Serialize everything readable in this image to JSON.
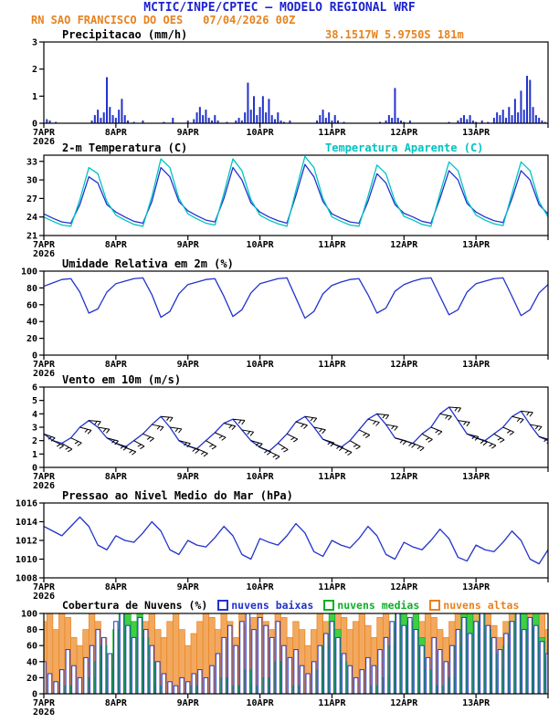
{
  "header": {
    "title": "MCTIC/INPE/CPTEC — MODELO REGIONAL WRF",
    "station": "RN SAO FRANCISCO DO OES",
    "run_datetime": "07/04/2026 00Z",
    "coords": "38.1517W 5.9750S 181m"
  },
  "colors": {
    "blue": "#2233cc",
    "cyan": "#00c3c3",
    "orange": "#e8821e",
    "orange_fill": "#f2a95f",
    "green": "#0faf27",
    "green_fill": "#41cf41",
    "title_blue": "#1c24cf",
    "black": "#000000"
  },
  "x_axis": {
    "day_labels": [
      "7APR",
      "8APR",
      "9APR",
      "10APR",
      "11APR",
      "12APR",
      "13APR"
    ],
    "year": "2026",
    "hours": 168
  },
  "chart_data": [
    {
      "id": "precip",
      "type": "bar",
      "title": "Precipitacao (mm/h)",
      "ylim": [
        0,
        3
      ],
      "yticks": [
        0,
        1,
        2,
        3
      ],
      "step_hours": 1,
      "values": [
        0,
        0.15,
        0.1,
        0,
        0.05,
        0,
        0,
        0,
        0,
        0,
        0,
        0,
        0,
        0,
        0,
        0,
        0.1,
        0.3,
        0.5,
        0.2,
        0.4,
        1.7,
        0.6,
        0.3,
        0.2,
        0.5,
        0.9,
        0.3,
        0.1,
        0,
        0.05,
        0,
        0,
        0.1,
        0,
        0,
        0,
        0,
        0,
        0,
        0.05,
        0,
        0,
        0.2,
        0,
        0,
        0,
        0,
        0.1,
        0,
        0.15,
        0.4,
        0.6,
        0.3,
        0.5,
        0.2,
        0.1,
        0.3,
        0.1,
        0,
        0,
        0.05,
        0,
        0,
        0.1,
        0.2,
        0.1,
        0.4,
        1.5,
        0.5,
        1.0,
        0.3,
        0.6,
        1.0,
        0.4,
        0.9,
        0.3,
        0.15,
        0.4,
        0.1,
        0.05,
        0,
        0.1,
        0,
        0,
        0,
        0,
        0,
        0,
        0,
        0,
        0.1,
        0.3,
        0.5,
        0.2,
        0.4,
        0.1,
        0.3,
        0.1,
        0,
        0.05,
        0,
        0,
        0,
        0,
        0,
        0,
        0,
        0,
        0,
        0,
        0,
        0.05,
        0,
        0.1,
        0.3,
        0.2,
        1.3,
        0.2,
        0.1,
        0.05,
        0,
        0.1,
        0,
        0,
        0,
        0,
        0,
        0,
        0,
        0,
        0,
        0,
        0,
        0,
        0.05,
        0,
        0,
        0.1,
        0.2,
        0.3,
        0.15,
        0.3,
        0.1,
        0.05,
        0,
        0.1,
        0,
        0.05,
        0,
        0.2,
        0.4,
        0.3,
        0.5,
        0.2,
        0.6,
        0.3,
        0.9,
        0.4,
        1.2,
        0.5,
        1.75,
        1.6,
        0.6,
        0.3,
        0.2,
        0.1,
        0.05,
        0
      ]
    },
    {
      "id": "temp",
      "type": "line",
      "title": "2-m Temperatura (C)",
      "ylim": [
        21,
        34
      ],
      "yticks": [
        21,
        24,
        27,
        30,
        33
      ],
      "step_hours": 3,
      "series": [
        {
          "name": "2-m Temperatura (C)",
          "color_key": "blue",
          "values": [
            24.5,
            23.8,
            23.2,
            23.0,
            26.0,
            30.5,
            29.5,
            26.0,
            24.8,
            24.0,
            23.3,
            23.0,
            26.5,
            32.0,
            30.5,
            26.5,
            25.0,
            24.2,
            23.5,
            23.2,
            27.0,
            32.0,
            30.0,
            26.3,
            24.8,
            24.0,
            23.4,
            23.0,
            27.5,
            32.5,
            30.5,
            26.5,
            24.5,
            23.8,
            23.2,
            23.0,
            26.5,
            31.0,
            29.5,
            26.0,
            24.6,
            24.0,
            23.3,
            23.0,
            27.0,
            31.5,
            30.0,
            26.2,
            24.8,
            24.0,
            23.4,
            23.1,
            27.0,
            31.5,
            30.0,
            26.0,
            24.5
          ]
        },
        {
          "name": "Temperatura Aparente (C)",
          "color_key": "cyan",
          "values": [
            24.0,
            23.3,
            22.7,
            22.5,
            26.8,
            32.0,
            31.0,
            26.5,
            24.3,
            23.5,
            22.8,
            22.5,
            27.3,
            33.4,
            32.0,
            27.0,
            24.5,
            23.7,
            23.0,
            22.7,
            27.8,
            33.4,
            31.5,
            26.8,
            24.3,
            23.5,
            22.9,
            22.5,
            28.3,
            33.8,
            32.0,
            27.0,
            24.0,
            23.3,
            22.7,
            22.5,
            27.3,
            32.4,
            31.0,
            26.5,
            24.1,
            23.5,
            22.8,
            22.5,
            27.8,
            32.9,
            31.5,
            26.7,
            24.3,
            23.5,
            22.9,
            22.6,
            27.8,
            32.9,
            31.5,
            26.5,
            24.0
          ]
        }
      ]
    },
    {
      "id": "rh",
      "type": "line",
      "title": "Umidade Relativa em 2m (%)",
      "ylim": [
        0,
        100
      ],
      "yticks": [
        0,
        20,
        40,
        60,
        80,
        100
      ],
      "step_hours": 3,
      "series": [
        {
          "name": "Umidade Relativa em 2m (%)",
          "color_key": "blue",
          "values": [
            82,
            86,
            90,
            91,
            75,
            50,
            55,
            75,
            85,
            88,
            91,
            92,
            72,
            45,
            52,
            73,
            84,
            87,
            90,
            91,
            70,
            46,
            54,
            74,
            85,
            88,
            91,
            92,
            68,
            44,
            52,
            73,
            83,
            87,
            90,
            91,
            72,
            50,
            56,
            76,
            84,
            88,
            91,
            92,
            70,
            48,
            54,
            75,
            85,
            88,
            91,
            92,
            70,
            47,
            54,
            74,
            84
          ]
        }
      ]
    },
    {
      "id": "wind",
      "type": "line+barbs",
      "title": "Vento em 10m (m/s)",
      "ylim": [
        0,
        6
      ],
      "yticks": [
        0,
        1,
        2,
        3,
        4,
        5,
        6
      ],
      "step_hours": 3,
      "series": [
        {
          "name": "Vento em 10m (m/s)",
          "color_key": "blue",
          "values": [
            2.5,
            2.0,
            1.8,
            2.2,
            3.0,
            3.5,
            3.0,
            2.2,
            1.8,
            1.5,
            2.0,
            2.5,
            3.2,
            3.8,
            3.0,
            2.0,
            1.6,
            1.4,
            2.0,
            2.6,
            3.3,
            3.6,
            2.8,
            2.0,
            1.5,
            1.2,
            1.8,
            2.5,
            3.4,
            3.8,
            3.0,
            2.1,
            1.8,
            1.5,
            2.0,
            2.8,
            3.6,
            4.0,
            3.2,
            2.2,
            2.0,
            1.8,
            2.5,
            3.0,
            4.0,
            4.5,
            3.5,
            2.5,
            2.2,
            2.0,
            2.5,
            3.0,
            3.8,
            4.2,
            3.2,
            2.3,
            2.0
          ]
        }
      ],
      "barb_dirs": [
        110,
        115,
        120,
        115,
        105,
        95,
        100,
        105,
        108,
        112,
        118,
        112,
        102,
        95,
        98,
        104,
        110,
        114,
        120,
        114,
        104,
        96,
        100,
        106,
        112,
        116,
        122,
        116,
        106,
        98,
        102,
        108,
        110,
        115,
        120,
        115,
        105,
        96,
        100,
        105,
        108,
        112,
        118,
        112,
        102,
        94,
        98,
        104,
        110,
        114,
        120,
        114,
        104,
        96,
        100,
        106,
        110
      ]
    },
    {
      "id": "pressure",
      "type": "line",
      "title": "Pressao ao Nivel Medio do Mar (hPa)",
      "ylim": [
        1008,
        1016
      ],
      "yticks": [
        1008,
        1010,
        1012,
        1014,
        1016
      ],
      "step_hours": 3,
      "series": [
        {
          "name": "Pressao ao Nivel Medio do Mar (hPa)",
          "color_key": "blue",
          "values": [
            1013.5,
            1013.0,
            1012.5,
            1013.5,
            1014.5,
            1013.5,
            1011.5,
            1011.0,
            1012.5,
            1012.0,
            1011.8,
            1012.8,
            1014.0,
            1013.0,
            1011.0,
            1010.5,
            1012.0,
            1011.5,
            1011.3,
            1012.3,
            1013.5,
            1012.5,
            1010.5,
            1010.0,
            1012.2,
            1011.8,
            1011.5,
            1012.5,
            1013.8,
            1012.8,
            1010.8,
            1010.3,
            1012.0,
            1011.5,
            1011.2,
            1012.2,
            1013.5,
            1012.5,
            1010.5,
            1010.0,
            1011.8,
            1011.3,
            1011.0,
            1012.0,
            1013.2,
            1012.2,
            1010.2,
            1009.8,
            1011.5,
            1011.0,
            1010.8,
            1011.8,
            1013.0,
            1012.0,
            1010.0,
            1009.5,
            1011.0
          ]
        }
      ]
    },
    {
      "id": "clouds",
      "type": "bar-overlay",
      "title": "Cobertura de Nuvens (%)",
      "ylim": [
        0,
        100
      ],
      "yticks": [
        0,
        20,
        40,
        60,
        80,
        100
      ],
      "step_hours": 2,
      "legend": [
        {
          "label": "nuvens baixas",
          "color_key": "blue"
        },
        {
          "label": "nuvens medias",
          "color_key": "green"
        },
        {
          "label": "nuvens altas",
          "color_key": "orange"
        }
      ],
      "series_low": [
        40,
        25,
        15,
        30,
        55,
        35,
        20,
        45,
        60,
        80,
        70,
        50,
        90,
        100,
        85,
        70,
        95,
        80,
        60,
        40,
        25,
        15,
        10,
        20,
        15,
        25,
        30,
        20,
        35,
        50,
        70,
        85,
        60,
        90,
        100,
        80,
        95,
        85,
        70,
        90,
        60,
        45,
        55,
        35,
        25,
        40,
        60,
        75,
        90,
        70,
        50,
        35,
        20,
        30,
        45,
        35,
        55,
        70,
        90,
        100,
        85,
        95,
        80,
        60,
        45,
        70,
        55,
        40,
        60,
        80,
        95,
        75,
        90,
        100,
        85,
        70,
        55,
        75,
        90,
        100,
        80,
        95,
        85,
        65,
        50
      ],
      "series_mid": [
        0,
        0,
        0,
        0,
        10,
        0,
        0,
        0,
        20,
        40,
        60,
        30,
        80,
        100,
        100,
        90,
        100,
        70,
        40,
        10,
        0,
        0,
        0,
        0,
        0,
        10,
        0,
        0,
        0,
        0,
        20,
        0,
        10,
        0,
        30,
        10,
        0,
        20,
        0,
        40,
        0,
        0,
        10,
        0,
        0,
        0,
        30,
        60,
        100,
        80,
        40,
        0,
        0,
        0,
        0,
        10,
        0,
        20,
        60,
        100,
        100,
        90,
        100,
        70,
        30,
        0,
        10,
        0,
        20,
        60,
        100,
        100,
        90,
        100,
        80,
        50,
        30,
        60,
        90,
        100,
        100,
        80,
        100,
        70,
        40
      ],
      "series_high": [
        90,
        100,
        80,
        100,
        95,
        70,
        60,
        80,
        100,
        90,
        70,
        50,
        40,
        20,
        60,
        80,
        50,
        90,
        100,
        80,
        70,
        90,
        100,
        80,
        60,
        75,
        90,
        100,
        95,
        80,
        100,
        90,
        70,
        100,
        85,
        95,
        100,
        90,
        80,
        100,
        95,
        70,
        90,
        80,
        60,
        80,
        100,
        90,
        70,
        100,
        95,
        80,
        90,
        100,
        85,
        70,
        95,
        100,
        80,
        90,
        60,
        40,
        70,
        90,
        100,
        95,
        80,
        70,
        90,
        100,
        80,
        95,
        100,
        90,
        100,
        85,
        70,
        90,
        100,
        95,
        85,
        100,
        90,
        100,
        80
      ]
    }
  ]
}
